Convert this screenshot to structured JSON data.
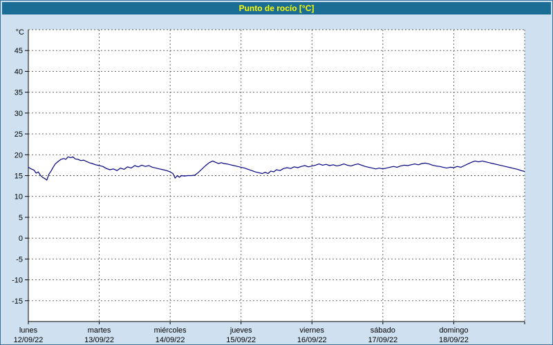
{
  "window": {
    "title": "Punto de rocío [°C]"
  },
  "theme": {
    "background": "#cfe1f1",
    "border": "#34719e",
    "titlebar_bg": "#1a6d95",
    "titlebar_text": "#ffff00"
  },
  "chart_data": {
    "type": "line",
    "title": "Punto de rocío [°C]",
    "grid": "dashed",
    "legend": "none",
    "colors": {
      "plot_bg": "#ffffff",
      "grid": "#555555",
      "axis": "#000000"
    },
    "y_axis": {
      "unit_label": "°C",
      "min": -20,
      "max": 50,
      "tick_step": 5,
      "tick_label_min": -15,
      "tick_label_max": 45
    },
    "x_axis": {
      "days": [
        {
          "name": "lunes",
          "date": "12/09/22"
        },
        {
          "name": "martes",
          "date": "13/09/22"
        },
        {
          "name": "miércoles",
          "date": "14/09/22"
        },
        {
          "name": "jueves",
          "date": "15/09/22"
        },
        {
          "name": "viernes",
          "date": "16/09/22"
        },
        {
          "name": "sábado",
          "date": "17/09/22"
        },
        {
          "name": "domingo",
          "date": "18/09/22"
        }
      ]
    },
    "series": [
      {
        "name": "Punto de rocío",
        "color": "#000080",
        "x_unit": "days_since_start",
        "points": [
          [
            0.0,
            17.0
          ],
          [
            0.04,
            16.6
          ],
          [
            0.08,
            16.3
          ],
          [
            0.11,
            15.6
          ],
          [
            0.14,
            15.9
          ],
          [
            0.17,
            15.1
          ],
          [
            0.2,
            14.6
          ],
          [
            0.24,
            14.2
          ],
          [
            0.26,
            13.9
          ],
          [
            0.29,
            15.3
          ],
          [
            0.32,
            16.1
          ],
          [
            0.35,
            17.0
          ],
          [
            0.38,
            17.8
          ],
          [
            0.42,
            18.4
          ],
          [
            0.46,
            18.9
          ],
          [
            0.5,
            19.1
          ],
          [
            0.53,
            18.9
          ],
          [
            0.56,
            19.5
          ],
          [
            0.6,
            19.3
          ],
          [
            0.63,
            19.5
          ],
          [
            0.66,
            19.0
          ],
          [
            0.7,
            18.9
          ],
          [
            0.74,
            18.6
          ],
          [
            0.78,
            18.7
          ],
          [
            0.82,
            18.4
          ],
          [
            0.86,
            18.1
          ],
          [
            0.9,
            17.9
          ],
          [
            0.95,
            17.6
          ],
          [
            1.0,
            17.4
          ],
          [
            1.05,
            17.2
          ],
          [
            1.1,
            16.7
          ],
          [
            1.15,
            16.4
          ],
          [
            1.2,
            16.6
          ],
          [
            1.25,
            16.2
          ],
          [
            1.3,
            16.8
          ],
          [
            1.35,
            16.5
          ],
          [
            1.4,
            17.1
          ],
          [
            1.45,
            16.8
          ],
          [
            1.5,
            17.4
          ],
          [
            1.55,
            17.1
          ],
          [
            1.6,
            17.5
          ],
          [
            1.65,
            17.2
          ],
          [
            1.7,
            17.4
          ],
          [
            1.75,
            17.0
          ],
          [
            1.8,
            16.8
          ],
          [
            1.85,
            16.6
          ],
          [
            1.9,
            16.4
          ],
          [
            1.95,
            16.2
          ],
          [
            2.0,
            15.9
          ],
          [
            2.04,
            15.5
          ],
          [
            2.07,
            14.4
          ],
          [
            2.1,
            15.0
          ],
          [
            2.13,
            14.6
          ],
          [
            2.16,
            15.0
          ],
          [
            2.2,
            14.9
          ],
          [
            2.25,
            15.0
          ],
          [
            2.3,
            15.0
          ],
          [
            2.35,
            15.1
          ],
          [
            2.4,
            15.8
          ],
          [
            2.45,
            16.6
          ],
          [
            2.5,
            17.4
          ],
          [
            2.55,
            18.1
          ],
          [
            2.6,
            18.5
          ],
          [
            2.64,
            18.2
          ],
          [
            2.68,
            17.9
          ],
          [
            2.72,
            18.1
          ],
          [
            2.76,
            17.9
          ],
          [
            2.8,
            17.8
          ],
          [
            2.85,
            17.6
          ],
          [
            2.9,
            17.4
          ],
          [
            2.95,
            17.2
          ],
          [
            3.0,
            17.0
          ],
          [
            3.05,
            16.8
          ],
          [
            3.1,
            16.5
          ],
          [
            3.15,
            16.2
          ],
          [
            3.2,
            15.9
          ],
          [
            3.25,
            15.7
          ],
          [
            3.3,
            15.5
          ],
          [
            3.34,
            15.8
          ],
          [
            3.38,
            15.5
          ],
          [
            3.42,
            16.1
          ],
          [
            3.46,
            15.9
          ],
          [
            3.5,
            16.4
          ],
          [
            3.55,
            16.2
          ],
          [
            3.6,
            16.7
          ],
          [
            3.65,
            16.9
          ],
          [
            3.7,
            16.7
          ],
          [
            3.75,
            17.1
          ],
          [
            3.8,
            16.9
          ],
          [
            3.85,
            17.2
          ],
          [
            3.9,
            17.4
          ],
          [
            3.95,
            17.1
          ],
          [
            4.0,
            17.3
          ],
          [
            4.05,
            17.5
          ],
          [
            4.1,
            17.8
          ],
          [
            4.15,
            17.5
          ],
          [
            4.2,
            17.7
          ],
          [
            4.25,
            17.4
          ],
          [
            4.3,
            17.6
          ],
          [
            4.35,
            17.3
          ],
          [
            4.4,
            17.5
          ],
          [
            4.45,
            17.8
          ],
          [
            4.5,
            17.5
          ],
          [
            4.55,
            17.3
          ],
          [
            4.6,
            17.6
          ],
          [
            4.65,
            17.8
          ],
          [
            4.7,
            17.5
          ],
          [
            4.75,
            17.2
          ],
          [
            4.8,
            17.0
          ],
          [
            4.85,
            16.8
          ],
          [
            4.9,
            16.6
          ],
          [
            4.95,
            16.8
          ],
          [
            5.0,
            16.6
          ],
          [
            5.05,
            16.8
          ],
          [
            5.1,
            17.0
          ],
          [
            5.15,
            17.2
          ],
          [
            5.2,
            17.0
          ],
          [
            5.25,
            17.3
          ],
          [
            5.3,
            17.5
          ],
          [
            5.35,
            17.4
          ],
          [
            5.4,
            17.6
          ],
          [
            5.45,
            17.8
          ],
          [
            5.5,
            17.6
          ],
          [
            5.55,
            17.9
          ],
          [
            5.6,
            18.0
          ],
          [
            5.65,
            17.8
          ],
          [
            5.7,
            17.5
          ],
          [
            5.75,
            17.3
          ],
          [
            5.8,
            17.2
          ],
          [
            5.85,
            17.0
          ],
          [
            5.9,
            16.8
          ],
          [
            5.95,
            17.0
          ],
          [
            6.0,
            16.9
          ],
          [
            6.05,
            17.2
          ],
          [
            6.1,
            17.0
          ],
          [
            6.15,
            17.4
          ],
          [
            6.2,
            17.8
          ],
          [
            6.25,
            18.2
          ],
          [
            6.3,
            18.5
          ],
          [
            6.35,
            18.3
          ],
          [
            6.4,
            18.5
          ],
          [
            6.45,
            18.3
          ],
          [
            6.5,
            18.1
          ],
          [
            6.55,
            17.9
          ],
          [
            6.6,
            17.7
          ],
          [
            6.65,
            17.5
          ],
          [
            6.7,
            17.3
          ],
          [
            6.75,
            17.1
          ],
          [
            6.8,
            16.9
          ],
          [
            6.85,
            16.7
          ],
          [
            6.9,
            16.5
          ],
          [
            6.95,
            16.2
          ],
          [
            7.0,
            16.0
          ]
        ]
      }
    ]
  }
}
